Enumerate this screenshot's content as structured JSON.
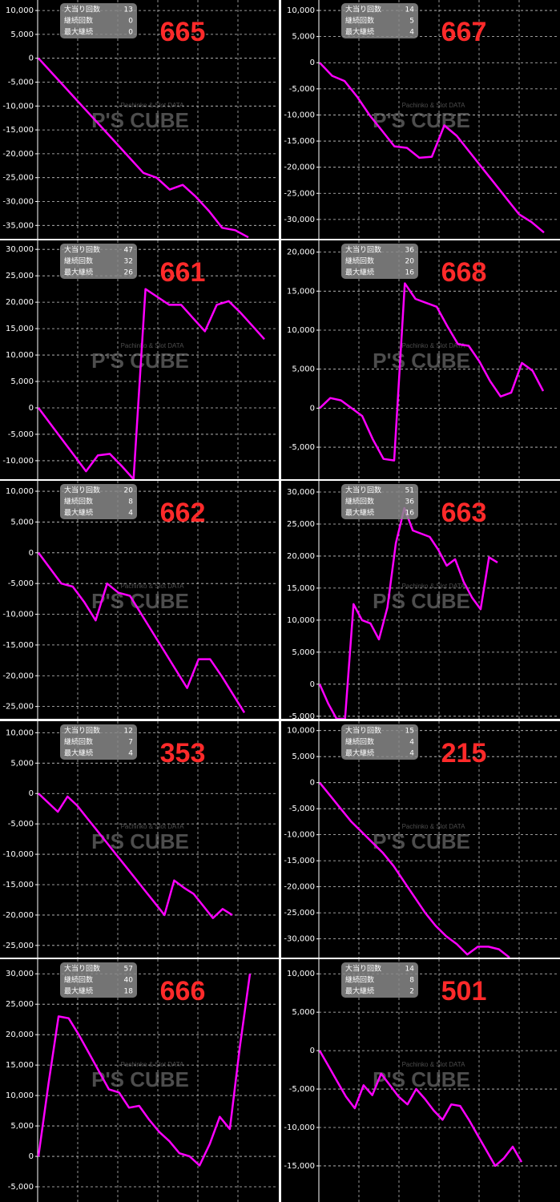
{
  "watermark": {
    "brand": "P'S CUBE",
    "tagline": "Pachinko & Slot DATA"
  },
  "chart_data": [
    {
      "type": "line",
      "title": "665",
      "stats": [
        {
          "label": "大当り回数",
          "value": 13
        },
        {
          "label": "継続回数",
          "value": 0
        },
        {
          "label": "最大継続",
          "value": 0
        }
      ],
      "values": [
        0,
        -3000,
        -6000,
        -9000,
        -12000,
        -15000,
        -18000,
        -21000,
        -24000,
        -25000,
        -27500,
        -26500,
        -29000,
        -32000,
        -35500,
        -36000,
        -37500
      ],
      "color": "#ff00ff",
      "ylim": [
        -37800,
        12200
      ],
      "yticks": [
        {
          "value": 10000,
          "label": "10,000"
        },
        {
          "value": 5000,
          "label": "5,000"
        },
        0,
        {
          "value": -5000,
          "label": "-5,000"
        },
        {
          "value": -10000,
          "label": "-10,000"
        },
        {
          "value": -15000,
          "label": "-15,000"
        },
        {
          "value": -20000,
          "label": "-20,000"
        },
        {
          "value": -25000,
          "label": "-25,000"
        },
        {
          "value": -30000,
          "label": "-30,000"
        },
        {
          "value": -35000,
          "label": "-35,000"
        }
      ],
      "grid": true
    },
    {
      "type": "line",
      "title": "667",
      "stats": [
        {
          "label": "大当り回数",
          "value": 14
        },
        {
          "label": "継続回数",
          "value": 5
        },
        {
          "label": "最大継続",
          "value": 4
        }
      ],
      "values": [
        0,
        -2500,
        -3500,
        -6500,
        -10000,
        -13000,
        -16000,
        -16300,
        -18200,
        -18000,
        -12000,
        -14000,
        -17000,
        -20000,
        -23000,
        -26000,
        -29000,
        -30500,
        -32500
      ],
      "color": "#ff00ff",
      "ylim": [
        -33700,
        12000
      ],
      "yticks": [
        {
          "value": 10000,
          "label": "10,000"
        },
        {
          "value": 5000,
          "label": "5,000"
        },
        0,
        {
          "value": -5000,
          "label": "-5,000"
        },
        {
          "value": -10000,
          "label": "-10,000"
        },
        {
          "value": -15000,
          "label": "-15,000"
        },
        {
          "value": -20000,
          "label": "-20,000"
        },
        {
          "value": -25000,
          "label": "-25,000"
        },
        {
          "value": -30000,
          "label": "-30,000"
        }
      ],
      "grid": true
    },
    {
      "type": "line",
      "title": "661",
      "stats": [
        {
          "label": "大当り回数",
          "value": 47
        },
        {
          "label": "継続回数",
          "value": 32
        },
        {
          "label": "最大継続",
          "value": 26
        }
      ],
      "values": [
        0,
        -3000,
        -6000,
        -9000,
        -12000,
        -9000,
        -8700,
        -11000,
        -13500,
        22500,
        21000,
        19500,
        19500,
        17000,
        14500,
        19500,
        20200,
        18000,
        15500,
        13000
      ],
      "color": "#ff00ff",
      "ylim": [
        -13500,
        31700
      ],
      "yticks": [
        {
          "value": 30000,
          "label": "30,000"
        },
        {
          "value": 25000,
          "label": "25,000"
        },
        {
          "value": 20000,
          "label": "20,000"
        },
        {
          "value": 15000,
          "label": "15,000"
        },
        {
          "value": 10000,
          "label": "10,000"
        },
        {
          "value": 5000,
          "label": "5,000"
        },
        0,
        {
          "value": -5000,
          "label": "-5,000"
        },
        {
          "value": -10000,
          "label": "-10,000"
        }
      ],
      "grid": true
    },
    {
      "type": "line",
      "title": "668",
      "stats": [
        {
          "label": "大当り回数",
          "value": 36
        },
        {
          "label": "継続回数",
          "value": 20
        },
        {
          "label": "最大継続",
          "value": 16
        }
      ],
      "values": [
        0,
        1300,
        1000,
        0,
        -1000,
        -4000,
        -6500,
        -6700,
        16000,
        14000,
        13500,
        13000,
        10500,
        8200,
        8000,
        6000,
        3500,
        1500,
        2000,
        5800,
        4800,
        2200
      ],
      "color": "#ff00ff",
      "ylim": [
        -9100,
        21500
      ],
      "yticks": [
        {
          "value": 20000,
          "label": "20,000"
        },
        {
          "value": 15000,
          "label": "15,000"
        },
        {
          "value": 10000,
          "label": "10,000"
        },
        {
          "value": 5000,
          "label": "5,000"
        },
        0,
        {
          "value": -5000,
          "label": "-5,000"
        }
      ],
      "grid": true
    },
    {
      "type": "line",
      "title": "662",
      "stats": [
        {
          "label": "大当り回数",
          "value": 20
        },
        {
          "label": "継続回数",
          "value": 8
        },
        {
          "label": "最大継続",
          "value": 4
        }
      ],
      "values": [
        0,
        -2500,
        -5000,
        -5500,
        -8000,
        -11000,
        -5000,
        -6500,
        -7000,
        -10000,
        -13000,
        -16000,
        -19000,
        -22000,
        -17300,
        -17300,
        -20000,
        -23000,
        -26000
      ],
      "color": "#ff00ff",
      "ylim": [
        -27000,
        11700
      ],
      "yticks": [
        {
          "value": 10000,
          "label": "10,000"
        },
        {
          "value": 5000,
          "label": "5,000"
        },
        0,
        {
          "value": -5000,
          "label": "-5,000"
        },
        {
          "value": -10000,
          "label": "-10,000"
        },
        {
          "value": -15000,
          "label": "-15,000"
        },
        {
          "value": -20000,
          "label": "-20,000"
        },
        {
          "value": -25000,
          "label": "-25,000"
        }
      ],
      "grid": true
    },
    {
      "type": "line",
      "title": "663",
      "stats": [
        {
          "label": "大当り回数",
          "value": 51
        },
        {
          "label": "継続回数",
          "value": 36
        },
        {
          "label": "最大継続",
          "value": 16
        }
      ],
      "values": [
        0,
        -3000,
        -5400,
        -5400,
        12500,
        10000,
        9500,
        7000,
        12000,
        22000,
        27500,
        24000,
        23500,
        23000,
        21000,
        18500,
        19500,
        16000,
        13500,
        11700,
        19800,
        19000
      ],
      "color": "#ff00ff",
      "ylim": [
        -5400,
        31750
      ],
      "yticks": [
        {
          "value": 30000,
          "label": "30,000"
        },
        {
          "value": 25000,
          "label": "25,000"
        },
        {
          "value": 20000,
          "label": "20,000"
        },
        {
          "value": 15000,
          "label": "15,000"
        },
        {
          "value": 10000,
          "label": "10,000"
        },
        {
          "value": 5000,
          "label": "5,000"
        },
        0,
        {
          "value": -5000,
          "label": "-5,000"
        }
      ],
      "grid": true
    },
    {
      "type": "line",
      "title": "353",
      "stats": [
        {
          "label": "大当り回数",
          "value": 12
        },
        {
          "label": "継続回数",
          "value": 7
        },
        {
          "label": "最大継続",
          "value": 4
        }
      ],
      "values": [
        0,
        -1500,
        -3000,
        -500,
        -2000,
        -4000,
        -6000,
        -8000,
        -10000,
        -12000,
        -14000,
        -16000,
        -18000,
        -20000,
        -14300,
        -15500,
        -16500,
        -18500,
        -20500,
        -19000,
        -20000
      ],
      "color": "#ff00ff",
      "ylim": [
        -27000,
        11900
      ],
      "yticks": [
        {
          "value": 10000,
          "label": "10,000"
        },
        {
          "value": 5000,
          "label": "5,000"
        },
        0,
        {
          "value": -5000,
          "label": "-5,000"
        },
        {
          "value": -10000,
          "label": "-10,000"
        },
        {
          "value": -15000,
          "label": "-15,000"
        },
        {
          "value": -20000,
          "label": "-20,000"
        },
        {
          "value": -25000,
          "label": "-25,000"
        }
      ],
      "grid": true
    },
    {
      "type": "line",
      "title": "215",
      "stats": [
        {
          "label": "大当り回数",
          "value": 15
        },
        {
          "label": "継続回数",
          "value": 4
        },
        {
          "label": "最大継続",
          "value": 4
        }
      ],
      "values": [
        0,
        -2500,
        -5000,
        -7500,
        -9500,
        -11500,
        -13500,
        -16000,
        -19000,
        -22000,
        -25000,
        -27500,
        -29500,
        -31000,
        -33000,
        -31500,
        -31500,
        -32000,
        -33600
      ],
      "color": "#ff00ff",
      "ylim": [
        -33600,
        11800
      ],
      "yticks": [
        {
          "value": 10000,
          "label": "10,000"
        },
        {
          "value": 5000,
          "label": "5,000"
        },
        0,
        {
          "value": -5000,
          "label": "-5,000"
        },
        {
          "value": -10000,
          "label": "-10,000"
        },
        {
          "value": -15000,
          "label": "-15,000"
        },
        {
          "value": -20000,
          "label": "-20,000"
        },
        {
          "value": -25000,
          "label": "-25,000"
        },
        {
          "value": -30000,
          "label": "-30,000"
        }
      ],
      "grid": true
    },
    {
      "type": "line",
      "title": "666",
      "stats": [
        {
          "label": "大当り回数",
          "value": 57
        },
        {
          "label": "継続回数",
          "value": 40
        },
        {
          "label": "最大継続",
          "value": 18
        }
      ],
      "values": [
        0,
        12000,
        23000,
        22700,
        20000,
        17000,
        14000,
        11000,
        10500,
        8000,
        8300,
        6000,
        4000,
        2500,
        500,
        0,
        -1500,
        2000,
        6500,
        4500,
        18000,
        30000
      ],
      "color": "#ff00ff",
      "ylim": [
        -7500,
        32400
      ],
      "yticks": [
        {
          "value": 30000,
          "label": "30,000"
        },
        {
          "value": 25000,
          "label": "25,000"
        },
        {
          "value": 20000,
          "label": "20,000"
        },
        {
          "value": 15000,
          "label": "15,000"
        },
        {
          "value": 10000,
          "label": "10,000"
        },
        {
          "value": 5000,
          "label": "5,000"
        },
        0,
        {
          "value": -5000,
          "label": "-5,000"
        }
      ],
      "grid": true
    },
    {
      "type": "line",
      "title": "501",
      "stats": [
        {
          "label": "大当り回数",
          "value": 14
        },
        {
          "label": "継続回数",
          "value": 8
        },
        {
          "label": "最大継続",
          "value": 2
        }
      ],
      "values": [
        0,
        -2000,
        -4000,
        -6000,
        -7500,
        -4500,
        -5800,
        -3000,
        -4500,
        -6000,
        -7000,
        -5000,
        -6300,
        -7800,
        -9000,
        -7000,
        -7200,
        -9000,
        -11000,
        -13000,
        -15000,
        -14000,
        -12500,
        -14500
      ],
      "color": "#ff00ff",
      "ylim": [
        -19700,
        11900
      ],
      "yticks": [
        {
          "value": 10000,
          "label": "10,000"
        },
        {
          "value": 5000,
          "label": "5,000"
        },
        0,
        {
          "value": -5000,
          "label": "-5,000"
        },
        {
          "value": -10000,
          "label": "-10,000"
        },
        {
          "value": -15000,
          "label": "-15,000"
        }
      ],
      "grid": true
    }
  ]
}
